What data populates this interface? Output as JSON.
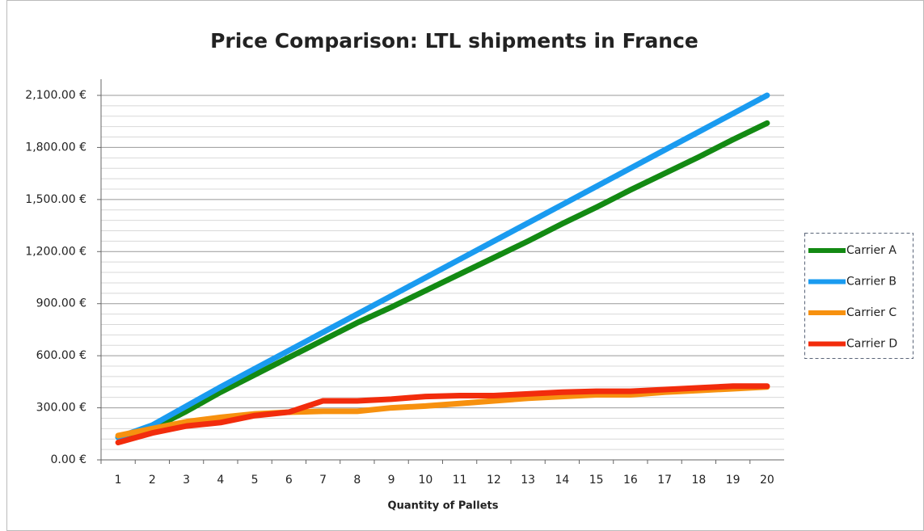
{
  "chart_data": {
    "type": "line",
    "title": "Price Comparison: LTL shipments in France",
    "x_label": "Quantity of Pallets",
    "categories": [
      1,
      2,
      3,
      4,
      5,
      6,
      7,
      8,
      9,
      10,
      11,
      12,
      13,
      14,
      15,
      16,
      17,
      18,
      19,
      20
    ],
    "series": [
      {
        "name": "Carrier A",
        "color": "#138a13",
        "values": [
          130,
          180,
          280,
          390,
          490,
          590,
          690,
          790,
          880,
          975,
          1070,
          1165,
          1260,
          1360,
          1455,
          1555,
          1650,
          1745,
          1845,
          1940
        ]
      },
      {
        "name": "Carrier B",
        "color": "#1a9bf0",
        "values": [
          130,
          200,
          310,
          420,
          525,
          630,
          735,
          840,
          945,
          1050,
          1155,
          1260,
          1365,
          1470,
          1575,
          1680,
          1785,
          1890,
          1995,
          2100
        ]
      },
      {
        "name": "Carrier C",
        "color": "#f7910f",
        "values": [
          140,
          180,
          220,
          245,
          265,
          275,
          280,
          280,
          300,
          310,
          325,
          340,
          355,
          365,
          375,
          375,
          390,
          400,
          410,
          420
        ]
      },
      {
        "name": "Carrier D",
        "color": "#f22c0c",
        "values": [
          100,
          155,
          195,
          215,
          255,
          275,
          340,
          340,
          350,
          365,
          370,
          370,
          380,
          390,
          395,
          395,
          405,
          415,
          425,
          425
        ]
      }
    ],
    "ylim": [
      0,
      2100
    ],
    "yticks": [
      {
        "value": 0,
        "label": "0.00 €"
      },
      {
        "value": 300,
        "label": "300.00 €"
      },
      {
        "value": 600,
        "label": "600.00 €"
      },
      {
        "value": 900,
        "label": "900.00 €"
      },
      {
        "value": 1200,
        "label": "1,200.00 €"
      },
      {
        "value": 1500,
        "label": "1,500.00 €"
      },
      {
        "value": 1800,
        "label": "1,800.00 €"
      },
      {
        "value": 2100,
        "label": "2,100.00 €"
      }
    ],
    "yminorticks": [
      60,
      120,
      180,
      240,
      360,
      420,
      480,
      540,
      660,
      720,
      780,
      840,
      960,
      1020,
      1080,
      1140,
      1260,
      1320,
      1380,
      1440,
      1560,
      1620,
      1680,
      1740,
      1860,
      1920,
      1980,
      2040
    ],
    "grid": true,
    "legend": "right"
  }
}
